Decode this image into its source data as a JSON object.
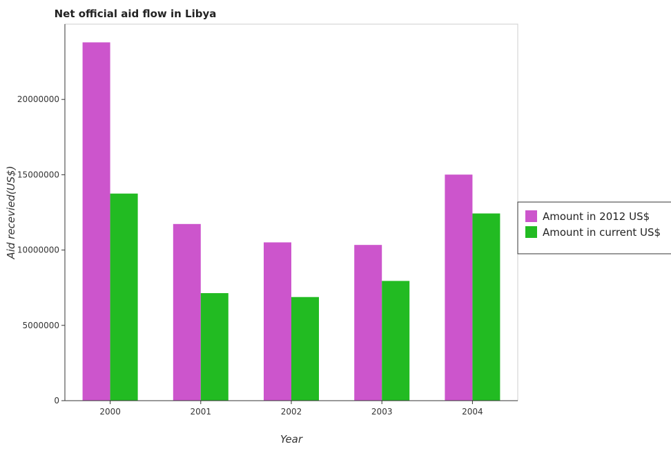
{
  "chart_data": {
    "type": "bar",
    "title": "Net official aid flow in Libya",
    "xlabel": "Year",
    "ylabel": "Aid recevied(US$)",
    "categories": [
      "2000",
      "2001",
      "2002",
      "2003",
      "2004"
    ],
    "series": [
      {
        "name": "Amount in 2012 US$",
        "color": "#cc55cc",
        "values": [
          23790000,
          11730000,
          10510000,
          10340000,
          15010000
        ]
      },
      {
        "name": "Amount in current US$",
        "color": "#22bb22",
        "values": [
          13750000,
          7140000,
          6880000,
          7950000,
          12430000
        ]
      }
    ],
    "yticks": [
      0,
      5000000,
      10000000,
      15000000,
      20000000
    ],
    "ytick_labels": [
      "0",
      "5000000",
      "10000000",
      "15000000",
      "20000000"
    ],
    "ylim": [
      0,
      25000000
    ],
    "grid": false,
    "legend_position": "right"
  }
}
